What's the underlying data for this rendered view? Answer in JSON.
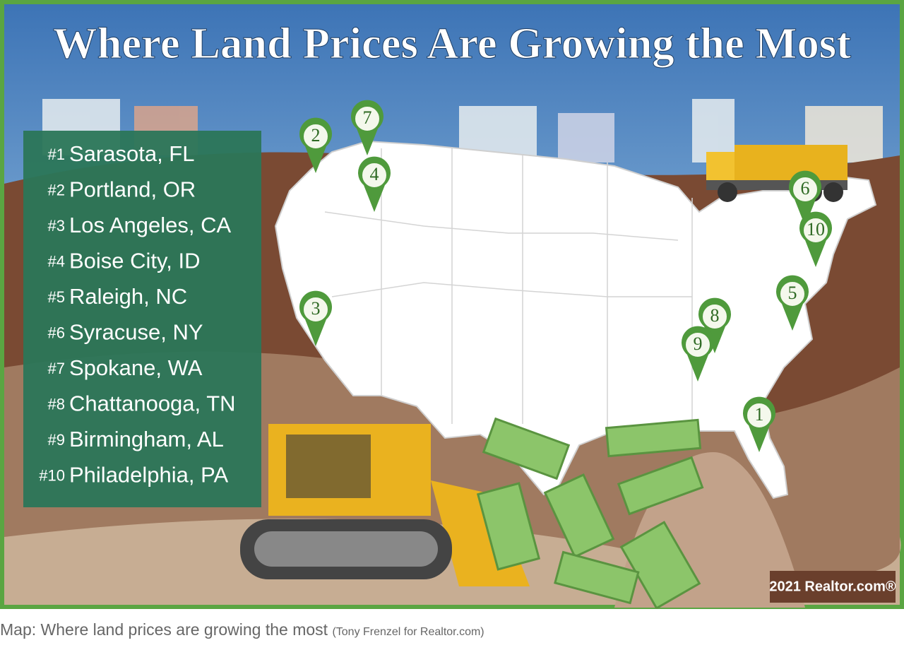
{
  "header": {
    "title": "Where Land Prices Are Growing the Most"
  },
  "rankings": [
    {
      "rank": "#1",
      "city": "Sarasota, FL"
    },
    {
      "rank": "#2",
      "city": "Portland, OR"
    },
    {
      "rank": "#3",
      "city": "Los Angeles, CA"
    },
    {
      "rank": "#4",
      "city": "Boise City, ID"
    },
    {
      "rank": "#5",
      "city": "Raleigh, NC"
    },
    {
      "rank": "#6",
      "city": "Syracuse, NY"
    },
    {
      "rank": "#7",
      "city": "Spokane, WA"
    },
    {
      "rank": "#8",
      "city": "Chattanooga, TN"
    },
    {
      "rank": "#9",
      "city": "Birmingham, AL"
    },
    {
      "rank": "#10",
      "city": "Philadelphia, PA"
    }
  ],
  "markers": [
    "1",
    "2",
    "3",
    "4",
    "5",
    "6",
    "7",
    "8",
    "9",
    "10"
  ],
  "badge": "2021 Realtor.com®",
  "caption": {
    "text": "Map: Where land prices are growing the most",
    "credit": "(Tony Frenzel for Realtor.com)"
  }
}
